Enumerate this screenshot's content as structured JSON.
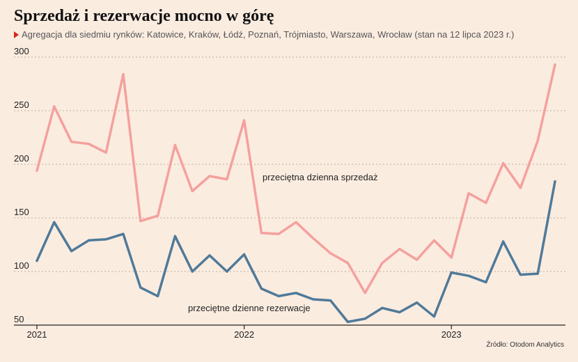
{
  "chart_data": {
    "type": "line",
    "title": "Sprzedaż i rezerwacje mocno w górę",
    "subtitle": "Agregacja dla siedmiu rynków: Katowice, Kraków, Łódź, Poznań, Trójmiasto, Warszawa, Wrocław (stan na 12 lipca 2023 r.)",
    "source": "Źródło: Otodom Analytics",
    "xlabel": "",
    "ylabel": "",
    "ylim": [
      50,
      300
    ],
    "yticks": [
      "50",
      "100",
      "150",
      "200",
      "250",
      "300"
    ],
    "x": [
      "2021-01",
      "2021-02",
      "2021-03",
      "2021-04",
      "2021-05",
      "2021-06",
      "2021-07",
      "2021-08",
      "2021-09",
      "2021-10",
      "2021-11",
      "2021-12",
      "2022-01",
      "2022-02",
      "2022-03",
      "2022-04",
      "2022-05",
      "2022-06",
      "2022-07",
      "2022-08",
      "2022-09",
      "2022-10",
      "2022-11",
      "2022-12",
      "2023-01",
      "2023-02",
      "2023-03",
      "2023-04",
      "2023-05",
      "2023-06",
      "2023-07"
    ],
    "xticks": [
      {
        "label": "2021",
        "at": "2021-01"
      },
      {
        "label": "2022",
        "at": "2022-01"
      },
      {
        "label": "2023",
        "at": "2023-01"
      }
    ],
    "grid": true,
    "series": [
      {
        "name": "przeciętna dzienna sprzedaż",
        "color": "#f4a19e",
        "values": [
          194,
          254,
          221,
          219,
          211,
          284,
          147,
          152,
          218,
          175,
          189,
          186,
          241,
          136,
          135,
          146,
          131,
          117,
          108,
          80,
          108,
          121,
          111,
          129,
          113,
          173,
          164,
          201,
          178,
          222,
          293
        ]
      },
      {
        "name": "przeciętne dzienne rezerwacje",
        "color": "#4f7a99",
        "values": [
          110,
          146,
          119,
          129,
          130,
          135,
          85,
          77,
          133,
          100,
          115,
          100,
          116,
          84,
          77,
          80,
          74,
          73,
          53,
          56,
          66,
          62,
          71,
          58,
          99,
          96,
          90,
          128,
          97,
          98,
          184
        ]
      }
    ]
  }
}
